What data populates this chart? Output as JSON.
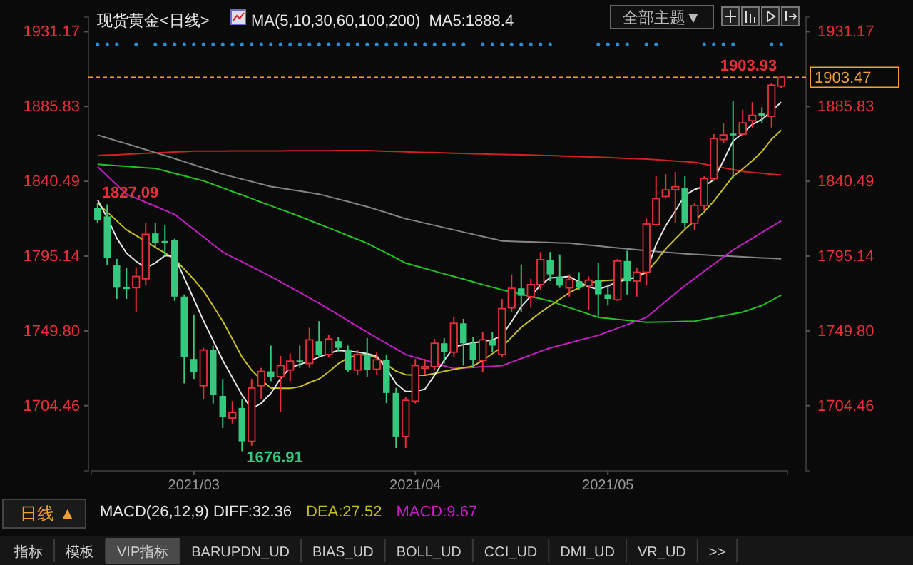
{
  "chart_data": {
    "type": "candlestick",
    "title": "现货黄金<日线>",
    "subtitle": "MA(5,10,30,60,100,200)  MA5:1888.4",
    "categories": [
      null,
      null,
      null,
      null,
      null,
      null,
      null,
      null,
      null,
      null,
      "2021/03",
      null,
      null,
      null,
      null,
      null,
      null,
      null,
      null,
      null,
      null,
      null,
      null,
      null,
      null,
      null,
      null,
      null,
      null,
      null,
      null,
      null,
      null,
      "2021/04",
      null,
      null,
      null,
      null,
      null,
      null,
      null,
      null,
      null,
      null,
      null,
      null,
      null,
      null,
      null,
      null,
      null,
      null,
      null,
      "2021/05",
      null,
      null,
      null,
      null,
      null,
      null,
      null,
      null,
      null,
      null,
      null,
      null,
      null,
      null,
      null,
      null,
      null,
      null
    ],
    "ohlc": [
      [
        1824.5,
        1827.09,
        1815.0,
        1817.0
      ],
      [
        1819.2,
        1826.5,
        1789.5,
        1794.1
      ],
      [
        1789.5,
        1793.5,
        1769.2,
        1776.0
      ],
      [
        1776.5,
        1788.1,
        1769.2,
        1775.2
      ],
      [
        1776.0,
        1788.1,
        1761.2,
        1782.8
      ],
      [
        1781.4,
        1815.1,
        1777.3,
        1808.4
      ],
      [
        1808.9,
        1815.1,
        1800.3,
        1803.0
      ],
      [
        1804.3,
        1813.8,
        1794.9,
        1803.0
      ],
      [
        1804.9,
        1805.7,
        1768.0,
        1770.6
      ],
      [
        1770.6,
        1771.9,
        1718.0,
        1734.2
      ],
      [
        1732.8,
        1759.8,
        1720.7,
        1724.7
      ],
      [
        1716.6,
        1739.5,
        1708.5,
        1738.2
      ],
      [
        1738.2,
        1740.9,
        1705.8,
        1711.2
      ],
      [
        1710.4,
        1720.7,
        1691.0,
        1697.8
      ],
      [
        1697.0,
        1707.2,
        1693.7,
        1700.4
      ],
      [
        1703.1,
        1708.5,
        1676.91,
        1682.9
      ],
      [
        1682.9,
        1720.7,
        1680.2,
        1715.2
      ],
      [
        1716.6,
        1727.4,
        1708.5,
        1725.3
      ],
      [
        1725.3,
        1740.9,
        1719.3,
        1722.1
      ],
      [
        1722.1,
        1734.7,
        1700.6,
        1728.8
      ],
      [
        1726.1,
        1736.1,
        1719.3,
        1731.5
      ],
      [
        1731.9,
        1740.9,
        1727.4,
        1730.9
      ],
      [
        1730.1,
        1751.7,
        1727.4,
        1744.4
      ],
      [
        1743.6,
        1755.7,
        1734.2,
        1735.5
      ],
      [
        1735.5,
        1747.6,
        1734.2,
        1744.9
      ],
      [
        1743.6,
        1746.3,
        1736.9,
        1739.5
      ],
      [
        1738.2,
        1740.9,
        1724.7,
        1726.1
      ],
      [
        1726.1,
        1738.2,
        1723.3,
        1735.5
      ],
      [
        1735.5,
        1745.5,
        1722.1,
        1726.1
      ],
      [
        1726.6,
        1736.9,
        1723.3,
        1732.3
      ],
      [
        1732.3,
        1735.5,
        1706.0,
        1712.2
      ],
      [
        1712.2,
        1715.3,
        1678.8,
        1685.8
      ],
      [
        1685.8,
        1709.9,
        1678.8,
        1707.7
      ],
      [
        1707.2,
        1732.8,
        1705.8,
        1728.8
      ],
      [
        1727.2,
        1732.8,
        1723.3,
        1728.2
      ],
      [
        1728.2,
        1744.9,
        1726.1,
        1742.3
      ],
      [
        1742.3,
        1745.5,
        1730.1,
        1736.9
      ],
      [
        1736.9,
        1758.5,
        1734.2,
        1754.4
      ],
      [
        1754.4,
        1757.1,
        1728.8,
        1742.3
      ],
      [
        1742.3,
        1746.3,
        1727.4,
        1732.0
      ],
      [
        1732.0,
        1749.0,
        1724.7,
        1744.4
      ],
      [
        1744.4,
        1749.0,
        1736.9,
        1740.9
      ],
      [
        1735.5,
        1769.2,
        1734.2,
        1763.3
      ],
      [
        1763.8,
        1784.1,
        1761.2,
        1775.6
      ],
      [
        1775.6,
        1790.1,
        1761.2,
        1771.1
      ],
      [
        1770.6,
        1781.4,
        1763.8,
        1777.9
      ],
      [
        1777.9,
        1797.6,
        1774.7,
        1793.0
      ],
      [
        1793.0,
        1797.6,
        1780.0,
        1784.1
      ],
      [
        1782.8,
        1796.2,
        1775.9,
        1777.3
      ],
      [
        1775.9,
        1784.1,
        1770.6,
        1780.8
      ],
      [
        1780.0,
        1785.4,
        1774.7,
        1776.0
      ],
      [
        1777.3,
        1782.8,
        1762.5,
        1780.6
      ],
      [
        1780.6,
        1790.9,
        1758.5,
        1772.0
      ],
      [
        1772.0,
        1777.3,
        1765.2,
        1769.2
      ],
      [
        1768.7,
        1793.5,
        1767.9,
        1792.2
      ],
      [
        1792.2,
        1798.4,
        1771.9,
        1780.0
      ],
      [
        1780.0,
        1788.1,
        1770.6,
        1785.4
      ],
      [
        1785.4,
        1817.8,
        1777.3,
        1814.6
      ],
      [
        1814.3,
        1843.5,
        1813.8,
        1830.0
      ],
      [
        1831.3,
        1844.8,
        1830.0,
        1835.3
      ],
      [
        1835.4,
        1846.2,
        1815.1,
        1837.2
      ],
      [
        1836.2,
        1843.5,
        1812.4,
        1815.1
      ],
      [
        1815.1,
        1827.3,
        1811.1,
        1825.9
      ],
      [
        1825.9,
        1843.5,
        1823.2,
        1842.1
      ],
      [
        1842.1,
        1869.1,
        1840.8,
        1866.4
      ],
      [
        1865.8,
        1875.9,
        1863.7,
        1868.6
      ],
      [
        1869.4,
        1889.3,
        1842.1,
        1868.3
      ],
      [
        1869.1,
        1884.0,
        1867.8,
        1875.9
      ],
      [
        1877.2,
        1888.5,
        1873.1,
        1880.5
      ],
      [
        1881.8,
        1885.3,
        1875.9,
        1879.9
      ],
      [
        1879.9,
        1900.2,
        1873.1,
        1898.8
      ],
      [
        1898.2,
        1903.93,
        1896.9,
        1903.47
      ]
    ],
    "series": [
      {
        "type": "line",
        "color": "#d02020",
        "values": [
          1856.1,
          1856.4,
          1856.6,
          1856.9,
          1857.2,
          1857.5,
          1857.7,
          1858.0,
          1858.3,
          1858.5,
          1858.8,
          1858.8,
          1858.8,
          1858.8,
          1858.9,
          1858.9,
          1858.9,
          1858.9,
          1858.9,
          1858.9,
          1859.0,
          1859.0,
          1859.0,
          1859.0,
          1859.0,
          1859.1,
          1859.1,
          1859.1,
          1859.1,
          1858.9,
          1858.7,
          1858.6,
          1858.4,
          1858.2,
          1858.0,
          1857.9,
          1857.7,
          1857.5,
          1857.4,
          1857.2,
          1857.1,
          1856.9,
          1856.8,
          1856.7,
          1856.5,
          1856.4,
          1856.2,
          1856.1,
          1855.9,
          1855.7,
          1855.5,
          1855.3,
          1855.1,
          1854.9,
          1854.6,
          1854.4,
          1854.2,
          1854.0,
          1853.6,
          1853.2,
          1852.8,
          1852.4,
          1852.0,
          1850.9,
          1849.8,
          1848.7,
          1847.6,
          1846.5,
          1845.9,
          1845.4,
          1844.8,
          1844.3
        ]
      },
      {
        "type": "line",
        "color": "#858585",
        "values": [
          1868.6,
          1866.8,
          1865.0,
          1863.3,
          1861.5,
          1859.7,
          1857.9,
          1856.1,
          1854.3,
          1852.4,
          1850.5,
          1848.6,
          1846.7,
          1844.8,
          1843.3,
          1841.8,
          1840.3,
          1838.8,
          1837.3,
          1836.4,
          1835.5,
          1834.6,
          1833.6,
          1832.7,
          1831.2,
          1829.7,
          1828.2,
          1826.6,
          1825.1,
          1823.3,
          1821.5,
          1819.6,
          1817.8,
          1816.5,
          1815.1,
          1813.8,
          1812.4,
          1811.1,
          1809.7,
          1808.4,
          1807.0,
          1805.7,
          1804.3,
          1804.1,
          1803.9,
          1803.8,
          1803.6,
          1803.4,
          1803.2,
          1803.0,
          1802.4,
          1801.9,
          1801.3,
          1800.7,
          1800.1,
          1799.6,
          1799.0,
          1798.4,
          1798.0,
          1797.5,
          1797.1,
          1796.6,
          1796.2,
          1795.9,
          1795.6,
          1795.3,
          1795.0,
          1794.7,
          1794.4,
          1794.1,
          1793.8,
          1793.5
        ]
      },
      {
        "type": "line",
        "color": "#22c322",
        "values": [
          1850.8,
          1850.4,
          1850.0,
          1849.6,
          1849.1,
          1848.7,
          1848.3,
          1846.8,
          1845.3,
          1843.8,
          1842.3,
          1840.8,
          1838.6,
          1836.5,
          1834.3,
          1832.2,
          1830.0,
          1827.8,
          1825.7,
          1823.5,
          1821.4,
          1819.2,
          1816.9,
          1814.6,
          1812.3,
          1810.0,
          1807.6,
          1805.3,
          1803.0,
          1800.0,
          1797.0,
          1794.0,
          1790.9,
          1789.3,
          1787.7,
          1786.0,
          1784.4,
          1782.8,
          1781.2,
          1779.6,
          1777.9,
          1776.3,
          1774.7,
          1773.3,
          1772.0,
          1770.6,
          1769.3,
          1767.9,
          1765.9,
          1763.9,
          1762.0,
          1760.0,
          1758.0,
          1757.4,
          1756.8,
          1756.2,
          1755.6,
          1755.0,
          1755.1,
          1755.3,
          1755.4,
          1755.6,
          1755.7,
          1756.8,
          1757.9,
          1759.0,
          1760.1,
          1761.2,
          1763.2,
          1765.2,
          1768.3,
          1771.4
        ]
      },
      {
        "type": "line",
        "color": "#c21fc2",
        "values": [
          1849.4,
          1843.8,
          1838.3,
          1832.7,
          1830.3,
          1827.8,
          1825.4,
          1822.9,
          1820.5,
          1815.9,
          1811.3,
          1806.8,
          1802.2,
          1797.6,
          1794.6,
          1791.7,
          1788.7,
          1785.8,
          1782.8,
          1779.6,
          1776.3,
          1773.1,
          1769.8,
          1766.6,
          1763.1,
          1759.6,
          1756.0,
          1752.5,
          1749.0,
          1745.6,
          1742.3,
          1738.9,
          1735.5,
          1733.8,
          1732.1,
          1730.4,
          1728.7,
          1727.0,
          1727.4,
          1727.7,
          1728.1,
          1728.4,
          1728.8,
          1730.9,
          1733.1,
          1735.2,
          1737.4,
          1739.5,
          1741.0,
          1742.5,
          1744.1,
          1745.6,
          1747.1,
          1749.3,
          1751.4,
          1753.6,
          1755.8,
          1758.0,
          1762.8,
          1767.7,
          1772.5,
          1777.3,
          1781.6,
          1786.0,
          1790.3,
          1794.6,
          1798.9,
          1802.4,
          1805.9,
          1809.5,
          1813.0,
          1816.5
        ]
      },
      {
        "type": "line",
        "color": "#c8c020",
        "values": [
          1827.3,
          1821.9,
          1816.5,
          1811.1,
          1807.6,
          1804.1,
          1800.5,
          1797.0,
          1793.5,
          1787.3,
          1781.0,
          1774.0,
          1765.0,
          1755.7,
          1745.0,
          1734.0,
          1726.0,
          1720.0,
          1715.3,
          1715.0,
          1715.0,
          1716.0,
          1718.5,
          1720.7,
          1725.0,
          1730.0,
          1733.5,
          1735.0,
          1735.5,
          1733.5,
          1729.5,
          1725.5,
          1723.3,
          1723.0,
          1722.9,
          1724.0,
          1725.3,
          1726.5,
          1727.5,
          1728.5,
          1732.0,
          1736.0,
          1740.0,
          1746.0,
          1752.0,
          1756.5,
          1761.0,
          1765.0,
          1769.0,
          1773.0,
          1776.0,
          1778.5,
          1780.0,
          1780.5,
          1780.8,
          1781.5,
          1782.2,
          1785.4,
          1792.0,
          1799.5,
          1805.5,
          1811.5,
          1816.5,
          1822.0,
          1828.5,
          1836.0,
          1843.5,
          1848.0,
          1853.0,
          1858.5,
          1866.0,
          1871.5
        ]
      },
      {
        "type": "line",
        "color": "#e6e6e6",
        "values": [
          1829.2,
          1818.5,
          1806.0,
          1797.0,
          1792.0,
          1788.1,
          1791.0,
          1795.5,
          1795.0,
          1782.0,
          1769.0,
          1756.0,
          1744.0,
          1732.0,
          1721.5,
          1711.0,
          1702.5,
          1706.0,
          1712.0,
          1721.0,
          1727.5,
          1729.5,
          1731.5,
          1734.0,
          1736.0,
          1738.0,
          1737.5,
          1737.0,
          1736.0,
          1734.5,
          1727.0,
          1718.0,
          1713.1,
          1713.1,
          1714.5,
          1723.0,
          1732.0,
          1740.0,
          1741.5,
          1742.5,
          1743.5,
          1744.3,
          1747.0,
          1755.5,
          1764.5,
          1771.0,
          1777.5,
          1782.0,
          1782.3,
          1782.8,
          1779.5,
          1776.5,
          1775.0,
          1777.0,
          1779.5,
          1781.0,
          1782.5,
          1786.0,
          1802.0,
          1813.5,
          1822.5,
          1832.0,
          1835.5,
          1837.5,
          1841.5,
          1853.0,
          1865.0,
          1869.5,
          1875.0,
          1878.0,
          1883.0,
          1888.4
        ]
      }
    ],
    "ylim": [
      1665,
      1940
    ],
    "yticks": [
      1931.17,
      1885.83,
      1840.49,
      1795.14,
      {
        "value": 1749.8,
        "label": "1749.80"
      },
      1704.46
    ],
    "y2lim": [
      1665,
      1940
    ],
    "y2ticks": [
      1931.17,
      1885.83,
      1840.49,
      1795.14,
      {
        "value": 1749.8,
        "label": "1749.80"
      },
      1704.46
    ],
    "ref_lines": [
      {
        "axis": "y",
        "value": 1903.47,
        "label": "1903.47",
        "color": "#f0a030",
        "line_style": "dashed"
      }
    ],
    "annotations": [
      {
        "text": "1827.09",
        "y": 1827.09
      },
      "1676.91",
      {
        "text": "1903.93",
        "y": 1903.93
      },
      "MACD(26,12,9) DIFF:32.36",
      "DEA:27.52",
      "MACD:9.67",
      "日线 ▲",
      "全部主题▼",
      "指标",
      "模板",
      "VIP指标",
      "BARUPDN_UD",
      "BIAS_UD",
      "BOLL_UD",
      "CCI_UD",
      "DMI_UD",
      "VR_UD",
      ">>"
    ]
  }
}
